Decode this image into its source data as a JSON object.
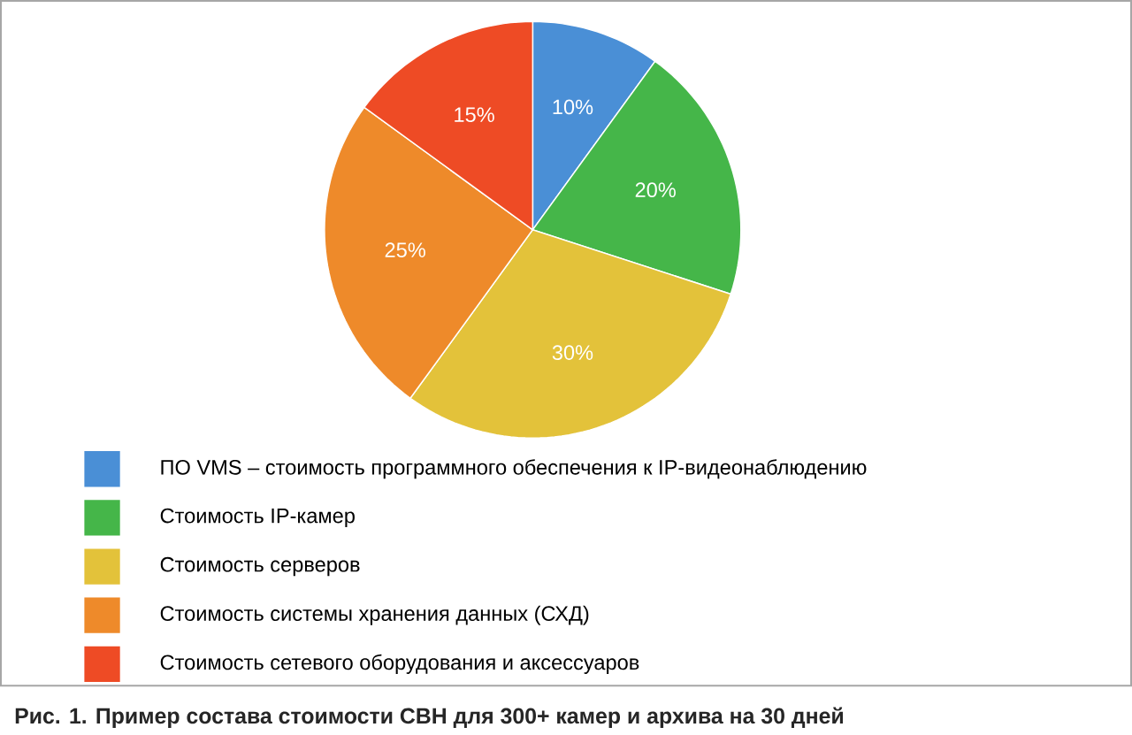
{
  "chart_data": {
    "type": "pie",
    "categories": [
      "ПО VMS – стоимость программного обеспечения к IP-видеонаблюдению",
      "Стоимость IP-камер",
      "Стоимость серверов",
      "Стоимость системы хранения данных (СХД)",
      "Стоимость сетевого оборудования и аксессуаров"
    ],
    "values": [
      10,
      20,
      30,
      25,
      15
    ],
    "colors": [
      "#4a8fd6",
      "#45b649",
      "#e3c23a",
      "#ee8a2a",
      "#ee4b25"
    ],
    "value_labels": [
      "10%",
      "20%",
      "30%",
      "25%",
      "15%"
    ],
    "legend": "bottom",
    "annotations": [
      "Рис. 1. Пример состава стоимости СВН для 300+ камер и архива на 30 дней"
    ]
  }
}
